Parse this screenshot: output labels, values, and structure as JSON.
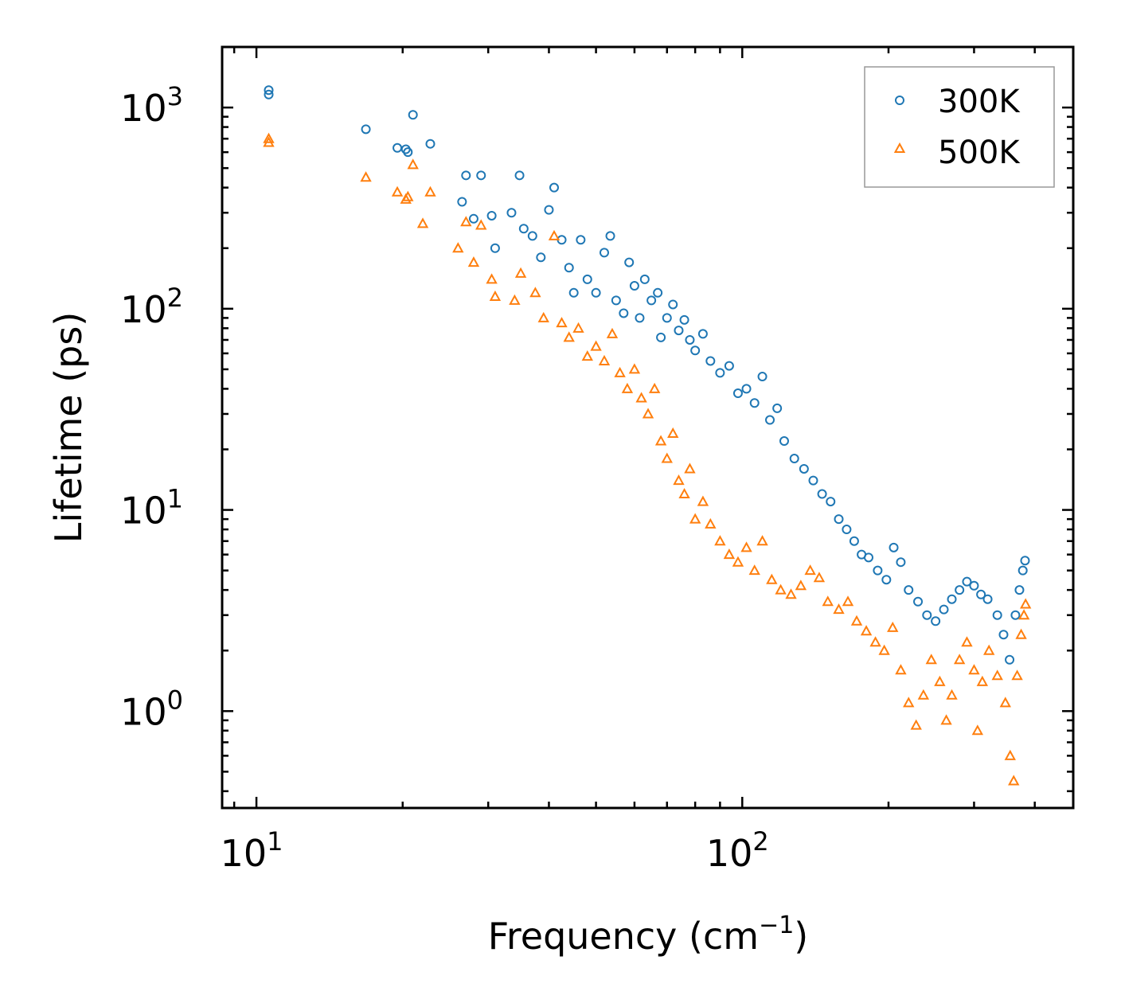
{
  "chart_data": {
    "type": "scatter",
    "title": "",
    "xlabel": "Frequency (cm",
    "xlabel_sup": "−1",
    "xlabel_close": ")",
    "ylabel": "Lifetime (ps)",
    "xscale": "log",
    "yscale": "log",
    "xlim": [
      8.5,
      480
    ],
    "ylim": [
      0.33,
      2000
    ],
    "xticks": [
      {
        "base": "10",
        "exp": "1",
        "value": 10
      },
      {
        "base": "10",
        "exp": "2",
        "value": 100
      }
    ],
    "yticks": [
      {
        "base": "10",
        "exp": "0",
        "value": 1
      },
      {
        "base": "10",
        "exp": "1",
        "value": 10
      },
      {
        "base": "10",
        "exp": "2",
        "value": 100
      },
      {
        "base": "10",
        "exp": "3",
        "value": 1000
      }
    ],
    "legend_position": "top-right",
    "series": [
      {
        "name": "300K",
        "marker": "circle-open",
        "color": "#1f77b4",
        "points": [
          [
            10.6,
            1220
          ],
          [
            10.6,
            1160
          ],
          [
            16.8,
            780
          ],
          [
            19.5,
            630
          ],
          [
            20.3,
            620
          ],
          [
            20.5,
            600
          ],
          [
            21.0,
            920
          ],
          [
            22.8,
            660
          ],
          [
            26.5,
            340
          ],
          [
            27.0,
            460
          ],
          [
            28.0,
            280
          ],
          [
            29.0,
            460
          ],
          [
            30.5,
            290
          ],
          [
            31.0,
            200
          ],
          [
            33.5,
            300
          ],
          [
            34.8,
            460
          ],
          [
            35.5,
            250
          ],
          [
            37.0,
            230
          ],
          [
            38.5,
            180
          ],
          [
            40.0,
            310
          ],
          [
            41.0,
            400
          ],
          [
            42.5,
            220
          ],
          [
            44.0,
            160
          ],
          [
            45.0,
            120
          ],
          [
            46.5,
            220
          ],
          [
            48.0,
            140
          ],
          [
            50.0,
            120
          ],
          [
            52.0,
            190
          ],
          [
            53.5,
            230
          ],
          [
            55.0,
            110
          ],
          [
            57.0,
            95
          ],
          [
            58.5,
            170
          ],
          [
            60.0,
            130
          ],
          [
            61.5,
            90
          ],
          [
            63.0,
            140
          ],
          [
            65.0,
            110
          ],
          [
            67.0,
            120
          ],
          [
            68.0,
            72
          ],
          [
            70.0,
            90
          ],
          [
            72.0,
            105
          ],
          [
            74.0,
            78
          ],
          [
            76.0,
            88
          ],
          [
            78.0,
            70
          ],
          [
            80.0,
            62
          ],
          [
            83.0,
            75
          ],
          [
            86.0,
            55
          ],
          [
            90.0,
            48
          ],
          [
            94.0,
            52
          ],
          [
            98.0,
            38
          ],
          [
            102.0,
            40
          ],
          [
            106.0,
            34
          ],
          [
            110.0,
            46
          ],
          [
            114.0,
            28
          ],
          [
            118.0,
            32
          ],
          [
            122.0,
            22
          ],
          [
            128.0,
            18
          ],
          [
            134.0,
            16
          ],
          [
            140.0,
            14
          ],
          [
            146.0,
            12
          ],
          [
            152.0,
            11
          ],
          [
            158.0,
            9
          ],
          [
            164.0,
            8
          ],
          [
            170.0,
            7
          ],
          [
            176.0,
            6
          ],
          [
            182.0,
            5.8
          ],
          [
            190.0,
            5
          ],
          [
            198.0,
            4.5
          ],
          [
            205.0,
            6.5
          ],
          [
            212.0,
            5.5
          ],
          [
            220.0,
            4
          ],
          [
            230.0,
            3.5
          ],
          [
            240.0,
            3
          ],
          [
            250.0,
            2.8
          ],
          [
            260.0,
            3.2
          ],
          [
            270.0,
            3.6
          ],
          [
            280.0,
            4.0
          ],
          [
            290.0,
            4.4
          ],
          [
            300.0,
            4.2
          ],
          [
            310.0,
            3.8
          ],
          [
            320.0,
            3.6
          ],
          [
            335.0,
            3.0
          ],
          [
            345.0,
            2.4
          ],
          [
            355.0,
            1.8
          ],
          [
            365.0,
            3.0
          ],
          [
            372.0,
            4.0
          ],
          [
            378.0,
            5.0
          ],
          [
            382.0,
            5.6
          ]
        ]
      },
      {
        "name": "500K",
        "marker": "triangle-open",
        "color": "#ff7f0e",
        "points": [
          [
            10.6,
            700
          ],
          [
            10.6,
            670
          ],
          [
            16.8,
            450
          ],
          [
            19.5,
            380
          ],
          [
            20.3,
            350
          ],
          [
            20.5,
            360
          ],
          [
            21.0,
            520
          ],
          [
            22.0,
            265
          ],
          [
            22.8,
            380
          ],
          [
            26.0,
            200
          ],
          [
            27.0,
            270
          ],
          [
            28.0,
            170
          ],
          [
            29.0,
            260
          ],
          [
            30.5,
            140
          ],
          [
            31.0,
            115
          ],
          [
            34.0,
            110
          ],
          [
            35.0,
            150
          ],
          [
            37.5,
            120
          ],
          [
            39.0,
            90
          ],
          [
            41.0,
            230
          ],
          [
            42.5,
            85
          ],
          [
            44.0,
            72
          ],
          [
            46.0,
            80
          ],
          [
            48.0,
            58
          ],
          [
            50.0,
            65
          ],
          [
            52.0,
            55
          ],
          [
            54.0,
            75
          ],
          [
            56.0,
            48
          ],
          [
            58.0,
            40
          ],
          [
            60.0,
            50
          ],
          [
            62.0,
            36
          ],
          [
            64.0,
            30
          ],
          [
            66.0,
            40
          ],
          [
            68.0,
            22
          ],
          [
            70.0,
            18
          ],
          [
            72.0,
            24
          ],
          [
            74.0,
            14
          ],
          [
            76.0,
            12
          ],
          [
            78.0,
            16
          ],
          [
            80.0,
            9
          ],
          [
            83.0,
            11
          ],
          [
            86.0,
            8.5
          ],
          [
            90.0,
            7
          ],
          [
            94.0,
            6
          ],
          [
            98.0,
            5.5
          ],
          [
            102.0,
            6.5
          ],
          [
            106.0,
            5
          ],
          [
            110.0,
            7
          ],
          [
            115.0,
            4.5
          ],
          [
            120.0,
            4
          ],
          [
            126.0,
            3.8
          ],
          [
            132.0,
            4.2
          ],
          [
            138.0,
            5
          ],
          [
            144.0,
            4.6
          ],
          [
            150.0,
            3.5
          ],
          [
            158.0,
            3.2
          ],
          [
            165.0,
            3.5
          ],
          [
            172.0,
            2.8
          ],
          [
            180.0,
            2.5
          ],
          [
            188.0,
            2.2
          ],
          [
            196.0,
            2.0
          ],
          [
            204.0,
            2.6
          ],
          [
            212.0,
            1.6
          ],
          [
            220.0,
            1.1
          ],
          [
            228.0,
            0.85
          ],
          [
            236.0,
            1.2
          ],
          [
            245.0,
            1.8
          ],
          [
            255.0,
            1.4
          ],
          [
            263.0,
            0.9
          ],
          [
            270.0,
            1.2
          ],
          [
            280.0,
            1.8
          ],
          [
            290.0,
            2.2
          ],
          [
            300.0,
            1.6
          ],
          [
            305.0,
            0.8
          ],
          [
            312.0,
            1.4
          ],
          [
            322.0,
            2.0
          ],
          [
            335.0,
            1.5
          ],
          [
            348.0,
            1.1
          ],
          [
            356.0,
            0.6
          ],
          [
            362.0,
            0.45
          ],
          [
            368.0,
            1.5
          ],
          [
            375.0,
            2.4
          ],
          [
            380.0,
            3.0
          ],
          [
            383.0,
            3.4
          ]
        ]
      }
    ]
  }
}
